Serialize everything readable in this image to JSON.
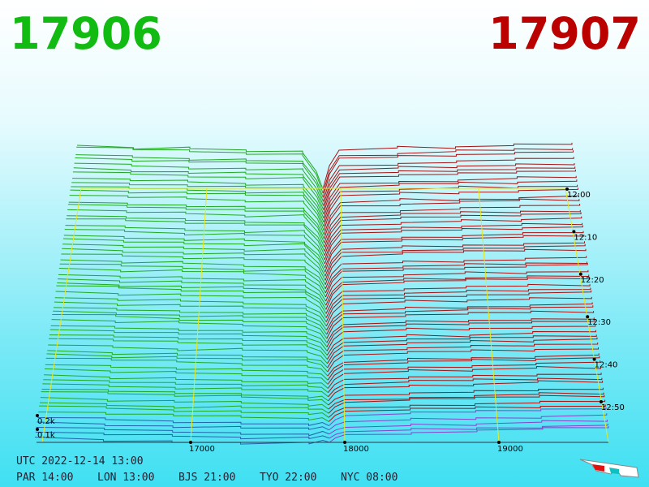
{
  "header": {
    "bid": "17906",
    "ask": "17907"
  },
  "axis": {
    "price_labels": [
      "17000",
      "18000",
      "19000"
    ],
    "depth_labels": [
      "0.2k",
      "0.1k"
    ],
    "time_labels": [
      "12:00",
      "12:10",
      "12:20",
      "12:30",
      "12:40",
      "12:50"
    ]
  },
  "footer": {
    "utc": "UTC 2022-12-14 13:00",
    "zones": [
      "PAR 14:00",
      "LON 13:00",
      "BJS 21:00",
      "TYO 22:00",
      "NYC 08:00"
    ]
  }
}
